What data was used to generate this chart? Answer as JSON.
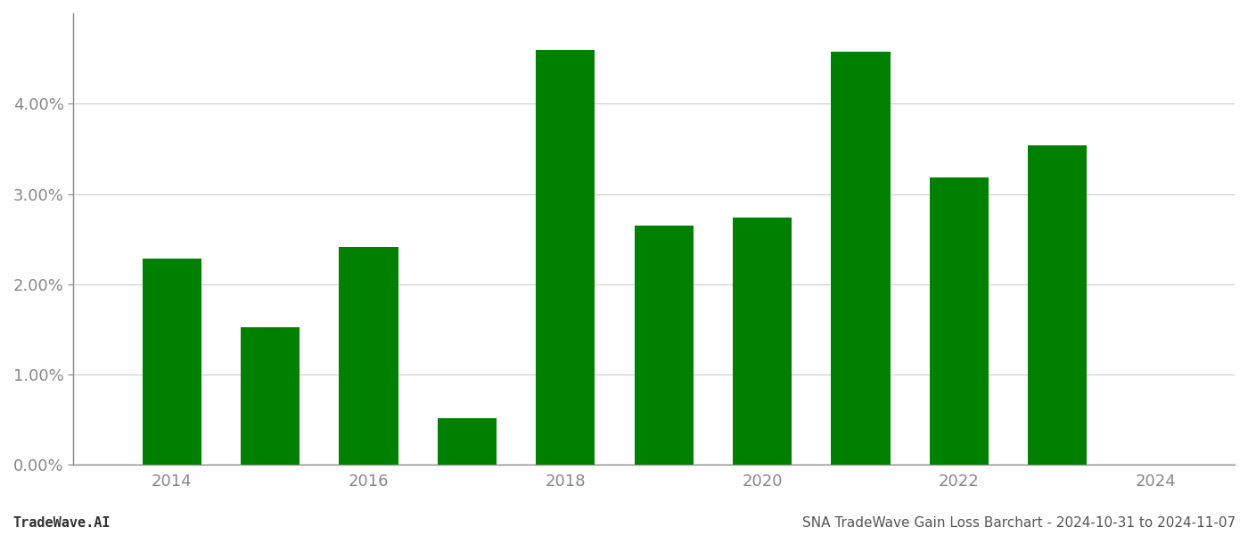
{
  "years": [
    2014,
    2015,
    2016,
    2017,
    2018,
    2019,
    2020,
    2021,
    2022,
    2023
  ],
  "values": [
    0.0228,
    0.0152,
    0.0241,
    0.0052,
    0.046,
    0.0265,
    0.0274,
    0.0458,
    0.0318,
    0.0354
  ],
  "bar_color": "#008000",
  "background_color": "#ffffff",
  "grid_color": "#cccccc",
  "axis_color": "#888888",
  "ylim": [
    0,
    0.05
  ],
  "yticks": [
    0.0,
    0.01,
    0.02,
    0.03,
    0.04
  ],
  "xticks_show": [
    2014,
    2016,
    2018,
    2020,
    2022,
    2024
  ],
  "footer_left": "TradeWave.AI",
  "footer_right": "SNA TradeWave Gain Loss Barchart - 2024-10-31 to 2024-11-07",
  "footer_fontsize": 11,
  "tick_fontsize": 13,
  "bar_width": 0.6
}
